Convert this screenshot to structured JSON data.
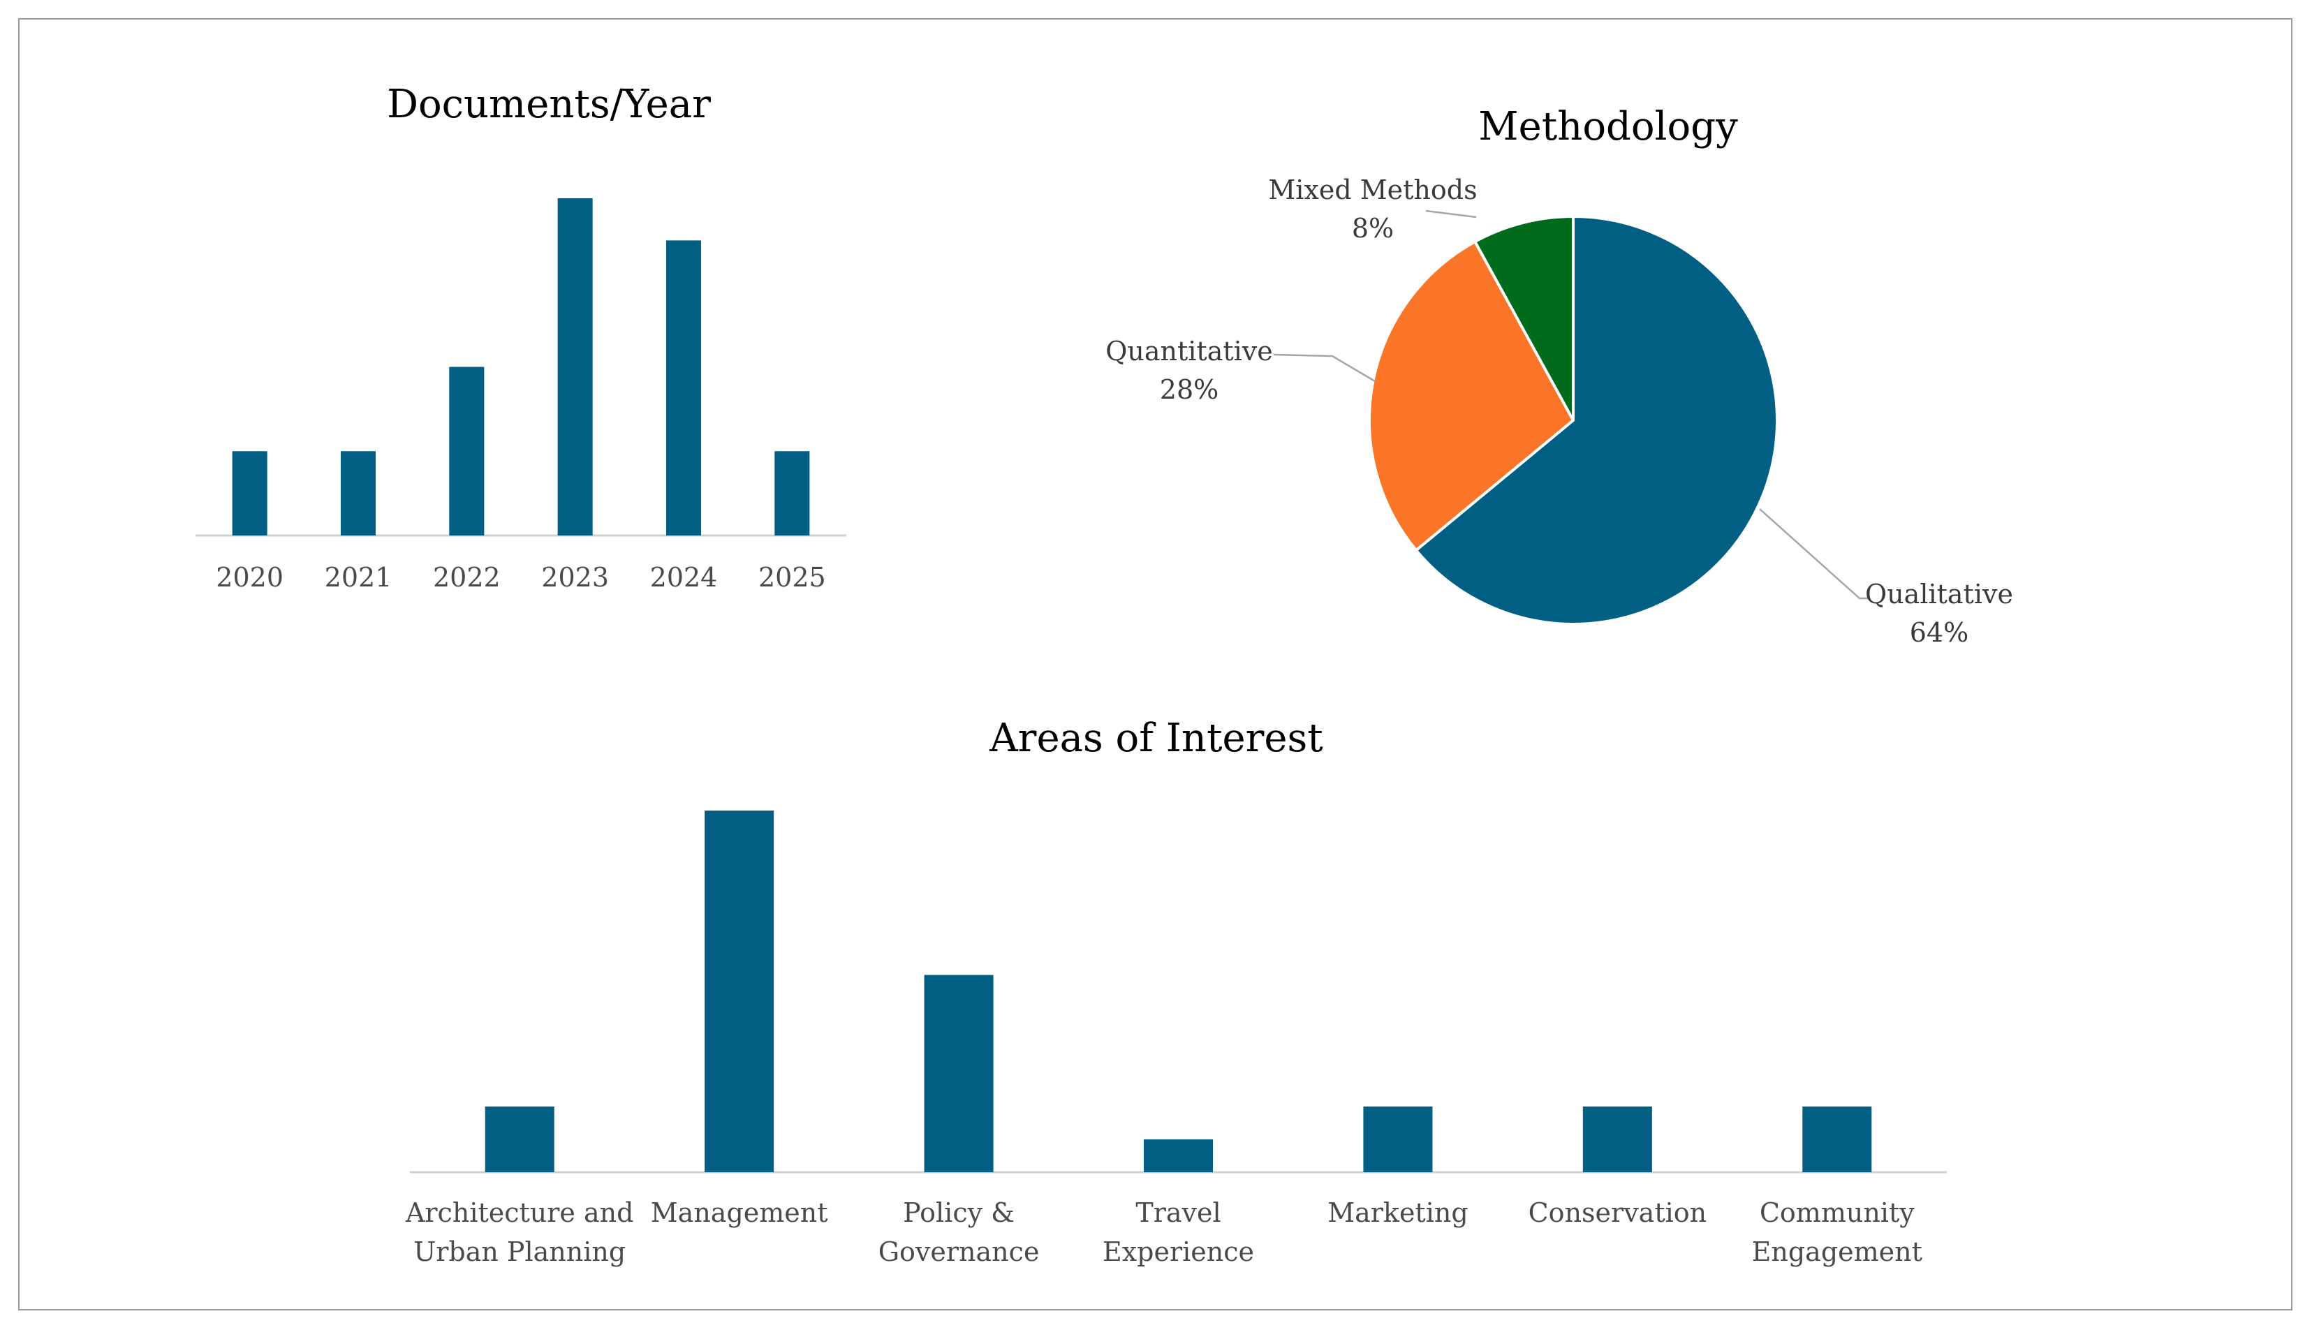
{
  "chart_data": [
    {
      "type": "bar",
      "title": "Documents/Year",
      "categories": [
        "2020",
        "2021",
        "2022",
        "2023",
        "2024",
        "2025"
      ],
      "values": [
        2,
        2,
        4,
        8,
        7,
        2
      ],
      "ylim": [
        0,
        8
      ],
      "grid": false,
      "color": "#005f83"
    },
    {
      "type": "pie",
      "title": "Methodology",
      "slices": [
        {
          "label": "Qualitative",
          "value": 64,
          "pct_text": "64%",
          "color": "#005f83"
        },
        {
          "label": "Quantitative",
          "value": 28,
          "pct_text": "28%",
          "color": "#fb7529"
        },
        {
          "label": "Mixed Methods",
          "value": 8,
          "pct_text": "8%",
          "color": "#006b1a"
        }
      ]
    },
    {
      "type": "bar",
      "title": "Areas of Interest",
      "categories": [
        [
          "Architecture and",
          "Urban Planning"
        ],
        [
          "Management"
        ],
        [
          "Policy &",
          "Governance"
        ],
        [
          "Travel",
          "Experience"
        ],
        [
          "Marketing"
        ],
        [
          "Conservation"
        ],
        [
          "Community",
          "Engagement"
        ]
      ],
      "values": [
        2,
        11,
        6,
        1,
        2,
        2,
        2
      ],
      "ylim": [
        0,
        11
      ],
      "grid": false,
      "color": "#005f83"
    }
  ]
}
